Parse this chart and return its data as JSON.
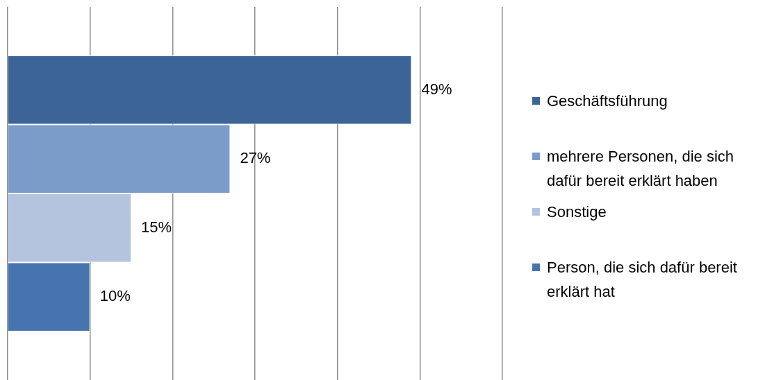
{
  "chart_data": {
    "type": "bar",
    "orientation": "horizontal",
    "categories": [
      null
    ],
    "series": [
      {
        "name": "Geschäftsführung",
        "color": "#3c6496",
        "values": [
          49
        ],
        "value_labels": [
          "49%"
        ]
      },
      {
        "name": "mehrere Personen, die sich dafür bereit erklärt haben",
        "color": "#7b9bc8",
        "values": [
          27
        ],
        "value_labels": [
          "27%"
        ]
      },
      {
        "name": "Sonstige",
        "color": "#b4c4de",
        "values": [
          15
        ],
        "value_labels": [
          "15%"
        ]
      },
      {
        "name": "Person, die sich dafür bereit erklärt hat",
        "color": "#4674ae",
        "values": [
          10
        ],
        "value_labels": [
          "10%"
        ]
      }
    ],
    "xlim": [
      0,
      60
    ],
    "xticks": [
      {
        "value": 0,
        "label": null
      },
      {
        "value": 10,
        "label": null
      },
      {
        "value": 20,
        "label": null
      },
      {
        "value": 30,
        "label": null
      },
      {
        "value": 40,
        "label": null
      },
      {
        "value": 50,
        "label": null
      },
      {
        "value": 60,
        "label": null
      }
    ],
    "grid": "x",
    "legend": "right"
  }
}
